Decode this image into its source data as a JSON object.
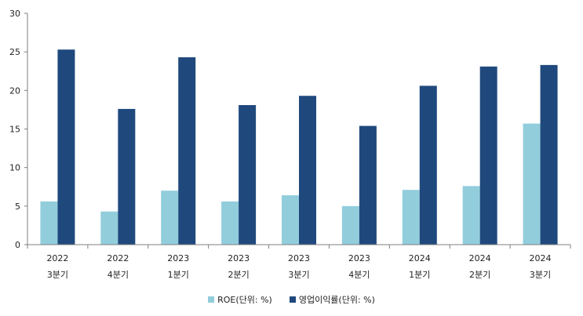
{
  "chart_data": {
    "type": "bar",
    "categories": [
      [
        "2022",
        "3분기"
      ],
      [
        "2022",
        "4분기"
      ],
      [
        "2023",
        "1분기"
      ],
      [
        "2023",
        "2분기"
      ],
      [
        "2023",
        "3분기"
      ],
      [
        "2023",
        "4분기"
      ],
      [
        "2024",
        "1분기"
      ],
      [
        "2024",
        "2분기"
      ],
      [
        "2024",
        "3분기"
      ]
    ],
    "series": [
      {
        "name": "ROE(단위: %)",
        "color": "#92CDDC",
        "values": [
          5.6,
          4.3,
          7.0,
          5.6,
          6.4,
          5.0,
          7.1,
          7.6,
          15.7
        ]
      },
      {
        "name": "영업이익률(단위: %)",
        "color": "#1F497D",
        "values": [
          25.3,
          17.6,
          24.3,
          18.1,
          19.3,
          15.4,
          20.6,
          23.1,
          23.3
        ]
      }
    ],
    "ylim": [
      0,
      30
    ],
    "yticks": [
      0,
      5,
      10,
      15,
      20,
      25,
      30
    ],
    "grid": false,
    "legend_position": "bottom"
  }
}
